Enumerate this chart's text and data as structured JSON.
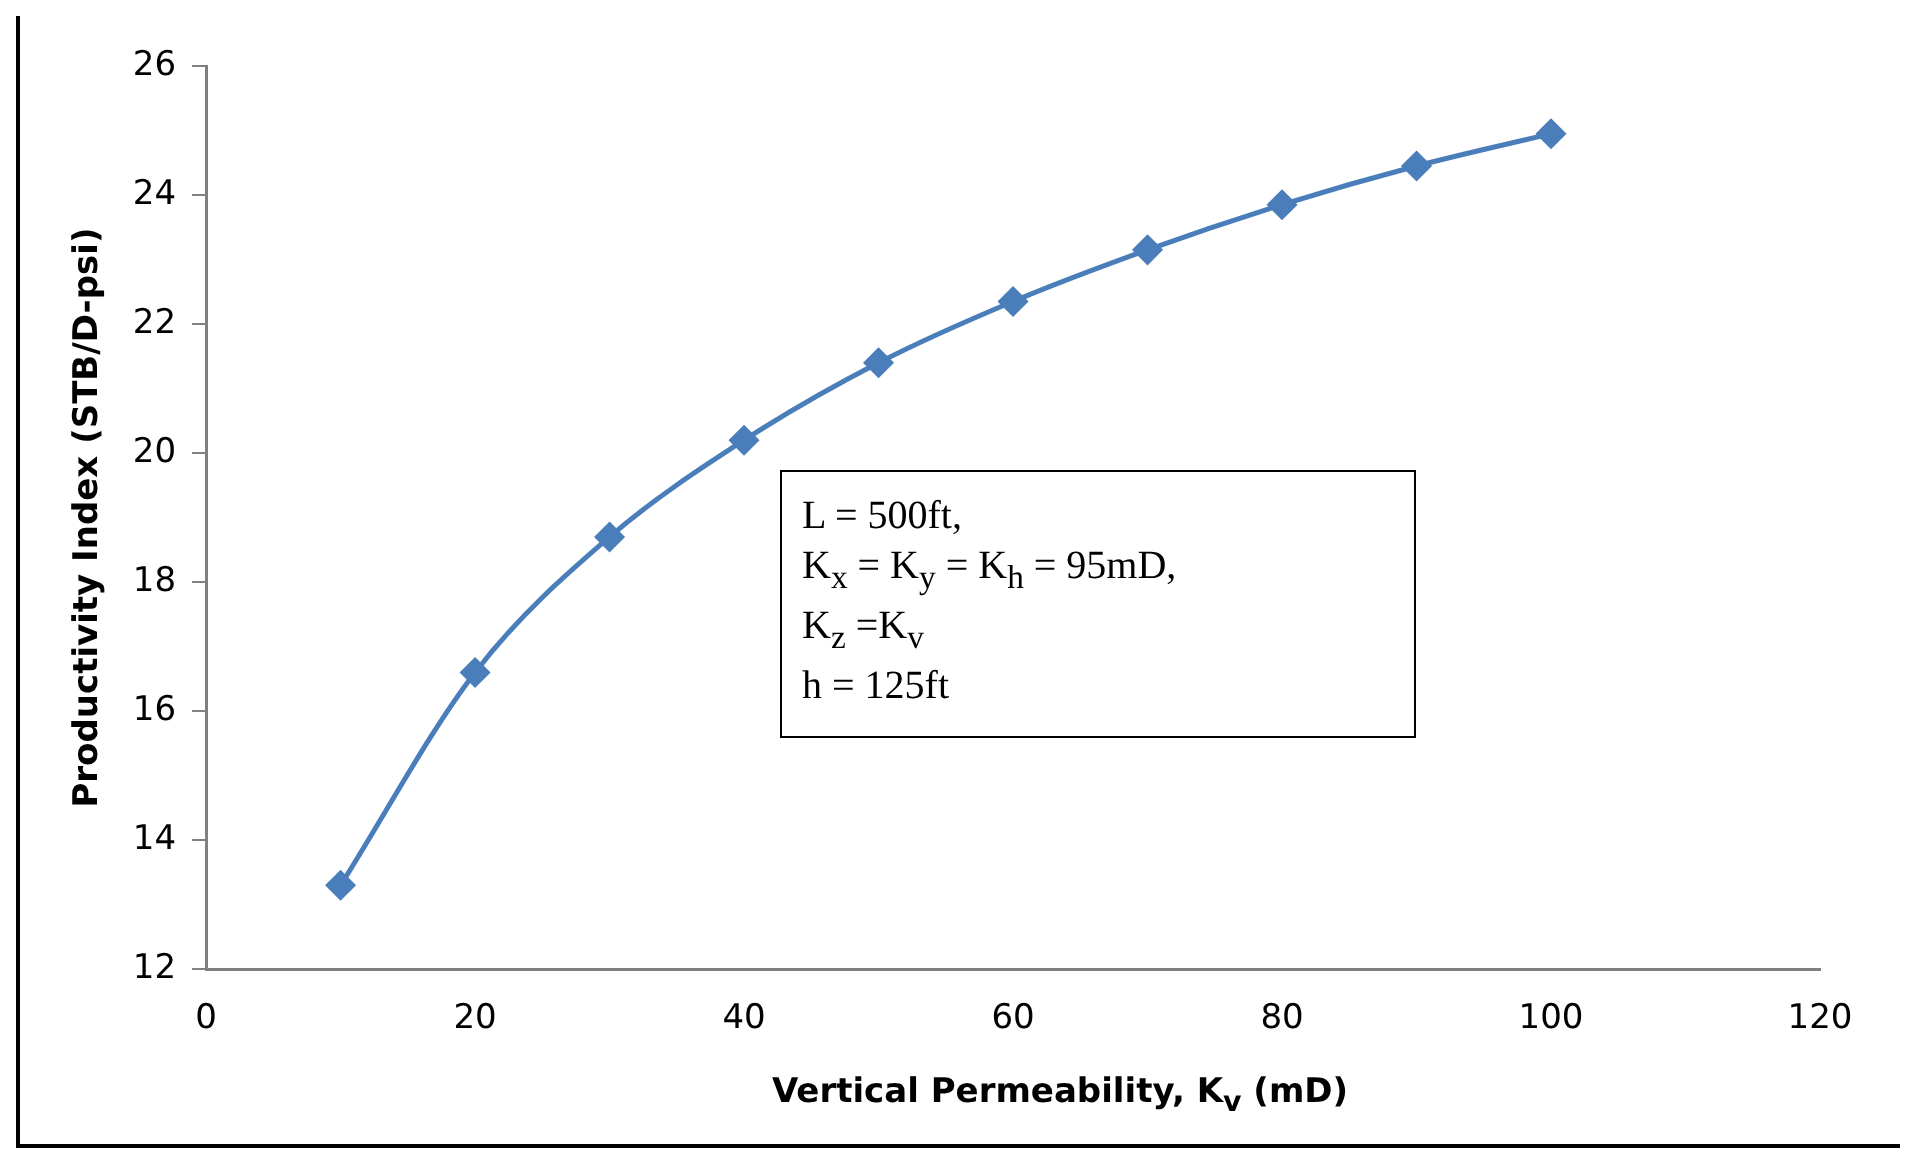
{
  "chart_data": {
    "type": "line",
    "xlabel": "Vertical Permeability, K$_{v}$ (mD)",
    "ylabel": "Productivity Index (STB/D-psi)",
    "x": [
      10,
      20,
      30,
      40,
      50,
      60,
      70,
      80,
      90,
      100
    ],
    "series": [
      {
        "color": "#4a7ebb",
        "values": [
          13.3,
          16.6,
          18.7,
          20.2,
          21.4,
          22.35,
          23.15,
          23.85,
          24.45,
          24.95
        ]
      }
    ],
    "xlim": [
      0,
      120
    ],
    "xticks": [
      0,
      20,
      40,
      60,
      80,
      100,
      120
    ],
    "ylim": [
      12,
      26
    ],
    "yticks": [
      12,
      14,
      16,
      18,
      20,
      22,
      24,
      26
    ],
    "grid": false,
    "legend": false,
    "marker": "diamond",
    "line_style": "solid",
    "annotations": [
      "L = 500ft,",
      "K$_{x}$ = K$_{y}$ = K$_{h}$ = 95mD,",
      "K$_{z}$ =K$_{v}$",
      "h = 125ft"
    ]
  }
}
